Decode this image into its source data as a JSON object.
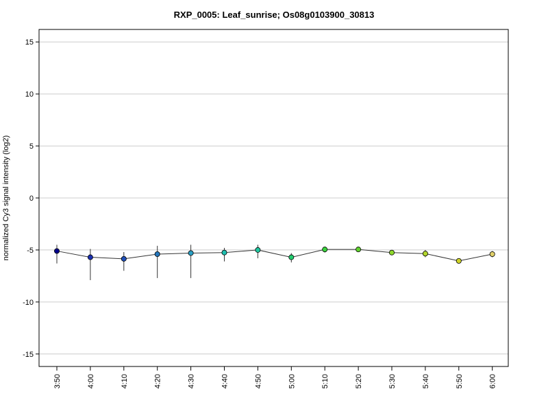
{
  "chart_data": {
    "type": "line",
    "title": "RXP_0005: Leaf_sunrise; Os08g0103900_30813",
    "xlabel": "",
    "ylabel": "normalized Cy3 signal intensity (log2)",
    "ylim": [
      -16.2,
      16.2
    ],
    "yticks": [
      "15",
      "10",
      "5",
      "0",
      "-5",
      "-10",
      "-15"
    ],
    "ytick_values": [
      15,
      10,
      5,
      0,
      -5,
      -10,
      -15
    ],
    "grid": "horizontal",
    "x": [
      "3:50",
      "4:00",
      "4:10",
      "4:20",
      "4:30",
      "4:40",
      "4:50",
      "5:00",
      "5:10",
      "5:20",
      "5:30",
      "5:40",
      "5:50",
      "6:00"
    ],
    "values": [
      -5.1,
      -5.7,
      -5.85,
      -5.4,
      -5.3,
      -5.25,
      -5.0,
      -5.7,
      -4.95,
      -4.95,
      -5.25,
      -5.35,
      -6.05,
      -5.4
    ],
    "error_low": [
      -6.3,
      -7.9,
      -7.0,
      -7.7,
      -7.7,
      -6.1,
      -5.8,
      -6.2,
      -5.25,
      -5.2,
      -5.3,
      -5.7,
      -6.3,
      -5.7
    ],
    "error_high": [
      -4.5,
      -4.9,
      -5.2,
      -4.6,
      -4.5,
      -4.8,
      -4.5,
      -5.3,
      -4.7,
      -4.7,
      -5.1,
      -5.0,
      -5.8,
      -5.1
    ],
    "point_colors": [
      "#00008b",
      "#1a2fb0",
      "#1f4fb8",
      "#2576bb",
      "#2a9fc4",
      "#1fbfb0",
      "#20c8a0",
      "#22cc6f",
      "#3ad23c",
      "#60d22e",
      "#8ed82c",
      "#b2d62c",
      "#cfd428",
      "#e0d06a"
    ]
  }
}
